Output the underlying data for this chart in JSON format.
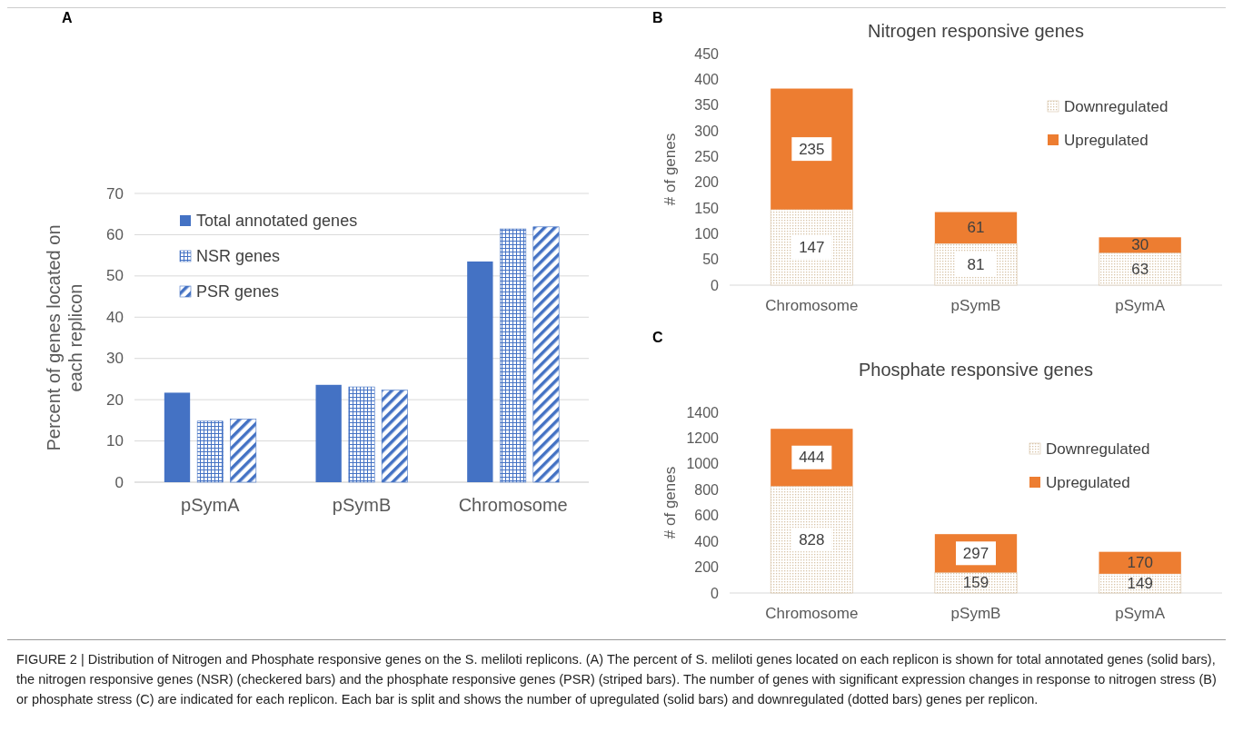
{
  "chart_data": [
    {
      "type": "bar",
      "ylabel": "Percent of genes located on each replicon",
      "categories": [
        "pSymA",
        "pSymB",
        "Chromosome"
      ],
      "series": [
        {
          "name": "Total annotated genes",
          "color": "#4472c4",
          "values": [
            21.7,
            23.6,
            53.5
          ]
        },
        {
          "name": "NSR genes",
          "color": "#4472c4",
          "values": [
            14.8,
            23.1,
            61.4
          ]
        },
        {
          "name": "PSR genes",
          "color": "#4472c4",
          "values": [
            15.3,
            22.3,
            61.9
          ]
        }
      ],
      "ylim": [
        0,
        70
      ],
      "yticks": [
        0,
        10,
        20,
        30,
        40,
        50,
        60,
        70
      ],
      "grid": "y",
      "legend": "top left",
      "annotations": [
        "A",
        "FIGURE 2 | Distribution of Nitrogen and Phosphate responsive genes on the S. meliloti replicons. (A) The percent of S. meliloti genes located on each replicon is shown for total annotated genes (solid bars), the nitrogen responsive genes (NSR) (checkered bars) and the phosphate responsive genes (PSR) (striped bars). The number of genes with significant expression changes in response to nitrogen stress (B) or phosphate stress (C) are indicated for each replicon. Each bar is split and shows the number of upregulated (solid bars) and downregulated (dotted bars) genes per replicon."
      ]
    },
    {
      "type": "bar",
      "title": "Nitrogen responsive genes",
      "ylabel": "# of genes",
      "categories": [
        "Chromosome",
        "pSymB",
        "pSymA"
      ],
      "stacked": true,
      "series": [
        {
          "name": "Downregulated",
          "color": "#d8c4a8",
          "values": [
            147,
            81,
            63
          ]
        },
        {
          "name": "Upregulated",
          "color": "#ed7d31",
          "values": [
            235,
            61,
            30
          ]
        }
      ],
      "ylim": [
        0,
        450
      ],
      "yticks": [
        0,
        50,
        100,
        150,
        200,
        250,
        300,
        350,
        400,
        450
      ],
      "data_labels": true,
      "legend": "top right",
      "annotations": [
        "B"
      ]
    },
    {
      "type": "bar",
      "title": "Phosphate responsive genes",
      "ylabel": "# of genes",
      "categories": [
        "Chromosome",
        "pSymB",
        "pSymA"
      ],
      "stacked": true,
      "series": [
        {
          "name": "Downregulated",
          "color": "#d8c4a8",
          "values": [
            828,
            159,
            149
          ]
        },
        {
          "name": "Upregulated",
          "color": "#ed7d31",
          "values": [
            444,
            297,
            170
          ]
        }
      ],
      "ylim": [
        0,
        1400
      ],
      "yticks": [
        0,
        200,
        400,
        600,
        800,
        1000,
        1200,
        1400
      ],
      "data_labels": true,
      "legend": "top right",
      "annotations": [
        "C"
      ]
    }
  ]
}
